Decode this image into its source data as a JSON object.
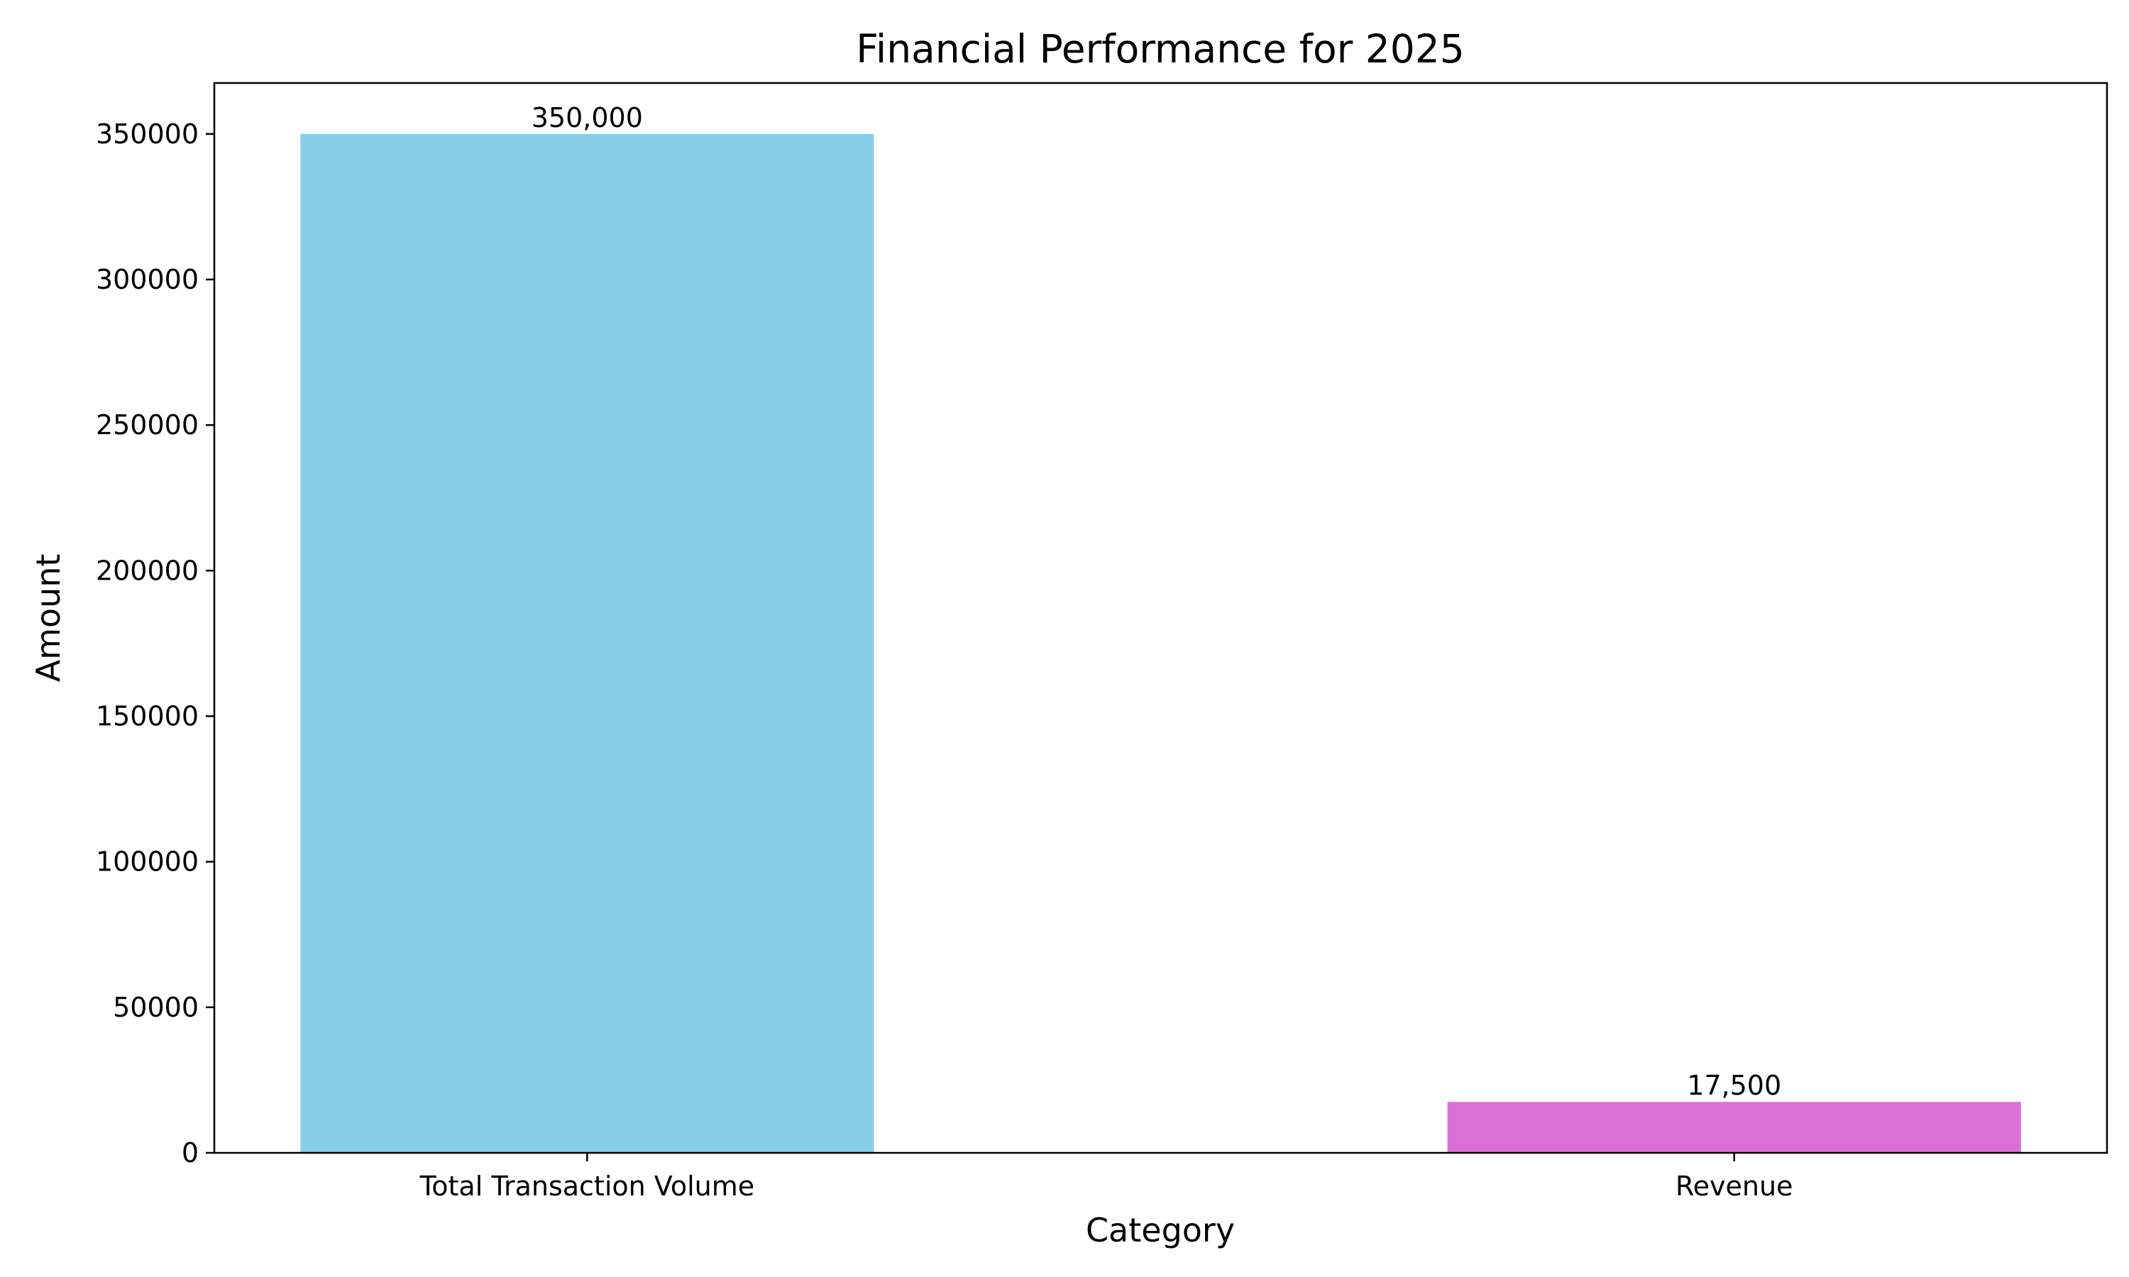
{
  "chart_data": {
    "type": "bar",
    "title": "Financial Performance for 2025",
    "xlabel": "Category",
    "ylabel": "Amount",
    "categories": [
      "Total Transaction Volume",
      "Revenue"
    ],
    "values": [
      350000,
      17500
    ],
    "data_labels": [
      "350,000",
      "17,500"
    ],
    "colors": [
      "#87ceeb",
      "#da70d6"
    ],
    "ylim": [
      0,
      367500
    ],
    "yticks": [
      0,
      50000,
      100000,
      150000,
      200000,
      250000,
      300000,
      350000
    ],
    "grid": false,
    "legend": "none"
  }
}
